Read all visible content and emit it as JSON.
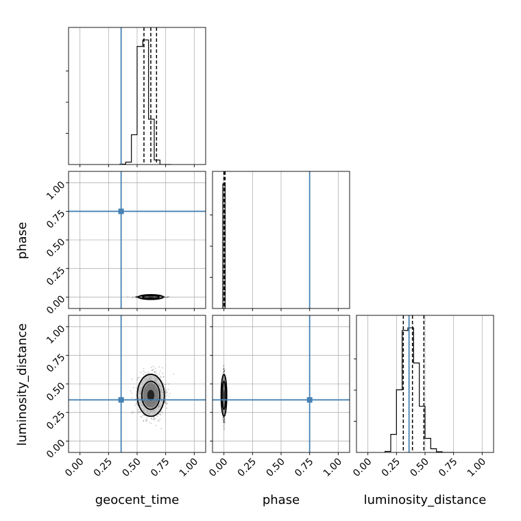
{
  "chart_data": {
    "type": "corner",
    "parameters": [
      "geocent_time",
      "phase",
      "luminosity_distance"
    ],
    "axis_labels": {
      "geocent_time": "geocent_time",
      "phase": "phase",
      "luminosity_distance": "luminosity_distance"
    },
    "xlim": [
      -0.1,
      1.1
    ],
    "ylim": [
      -0.1,
      1.1
    ],
    "ticks": [
      0.0,
      0.25,
      0.5,
      0.75,
      1.0
    ],
    "tick_labels": [
      "0.00",
      "0.25",
      "0.50",
      "0.75",
      "1.00"
    ],
    "grid": true,
    "truths": {
      "geocent_time": 0.36,
      "phase": 0.75,
      "luminosity_distance": 0.36
    },
    "truth_color": "#4682b4",
    "histograms": {
      "geocent_time": {
        "bin_edges": [
          0.35,
          0.4,
          0.45,
          0.5,
          0.55,
          0.6,
          0.65,
          0.7,
          0.75,
          0.8
        ],
        "counts": [
          0.01,
          0.07,
          0.86,
          3.41,
          3.6,
          1.31,
          0.13,
          0.0,
          0.0
        ],
        "quantiles": [
          0.56,
          0.62,
          0.67
        ]
      },
      "phase": {
        "bin_edges": [
          -0.01,
          0.0,
          0.01
        ],
        "counts": [
          1.0,
          1.0
        ],
        "quantiles": [
          0.0,
          0.0,
          0.01
        ]
      },
      "luminosity_distance": {
        "bin_edges": [
          0.15,
          0.2,
          0.25,
          0.3,
          0.35,
          0.4,
          0.45,
          0.5,
          0.55,
          0.6,
          0.65,
          0.7,
          0.75
        ],
        "counts": [
          0.03,
          0.54,
          1.87,
          3.64,
          3.72,
          2.67,
          1.38,
          0.42,
          0.11,
          0.02,
          0.0,
          0.0
        ],
        "quantiles": [
          0.31,
          0.39,
          0.49
        ]
      }
    },
    "scatter_2d": {
      "geocent_time_vs_phase": {
        "x_mean": 0.62,
        "x_sd": 0.05,
        "y_mean": 0.0,
        "y_sd": 0.004
      },
      "geocent_time_vs_luminosity_distance": {
        "x_mean": 0.62,
        "x_sd": 0.055,
        "y_mean": 0.4,
        "y_sd": 0.085
      },
      "phase_vs_luminosity_distance": {
        "x_mean": 0.0,
        "x_sd": 0.004,
        "y_mean": 0.4,
        "y_sd": 0.085
      }
    }
  }
}
